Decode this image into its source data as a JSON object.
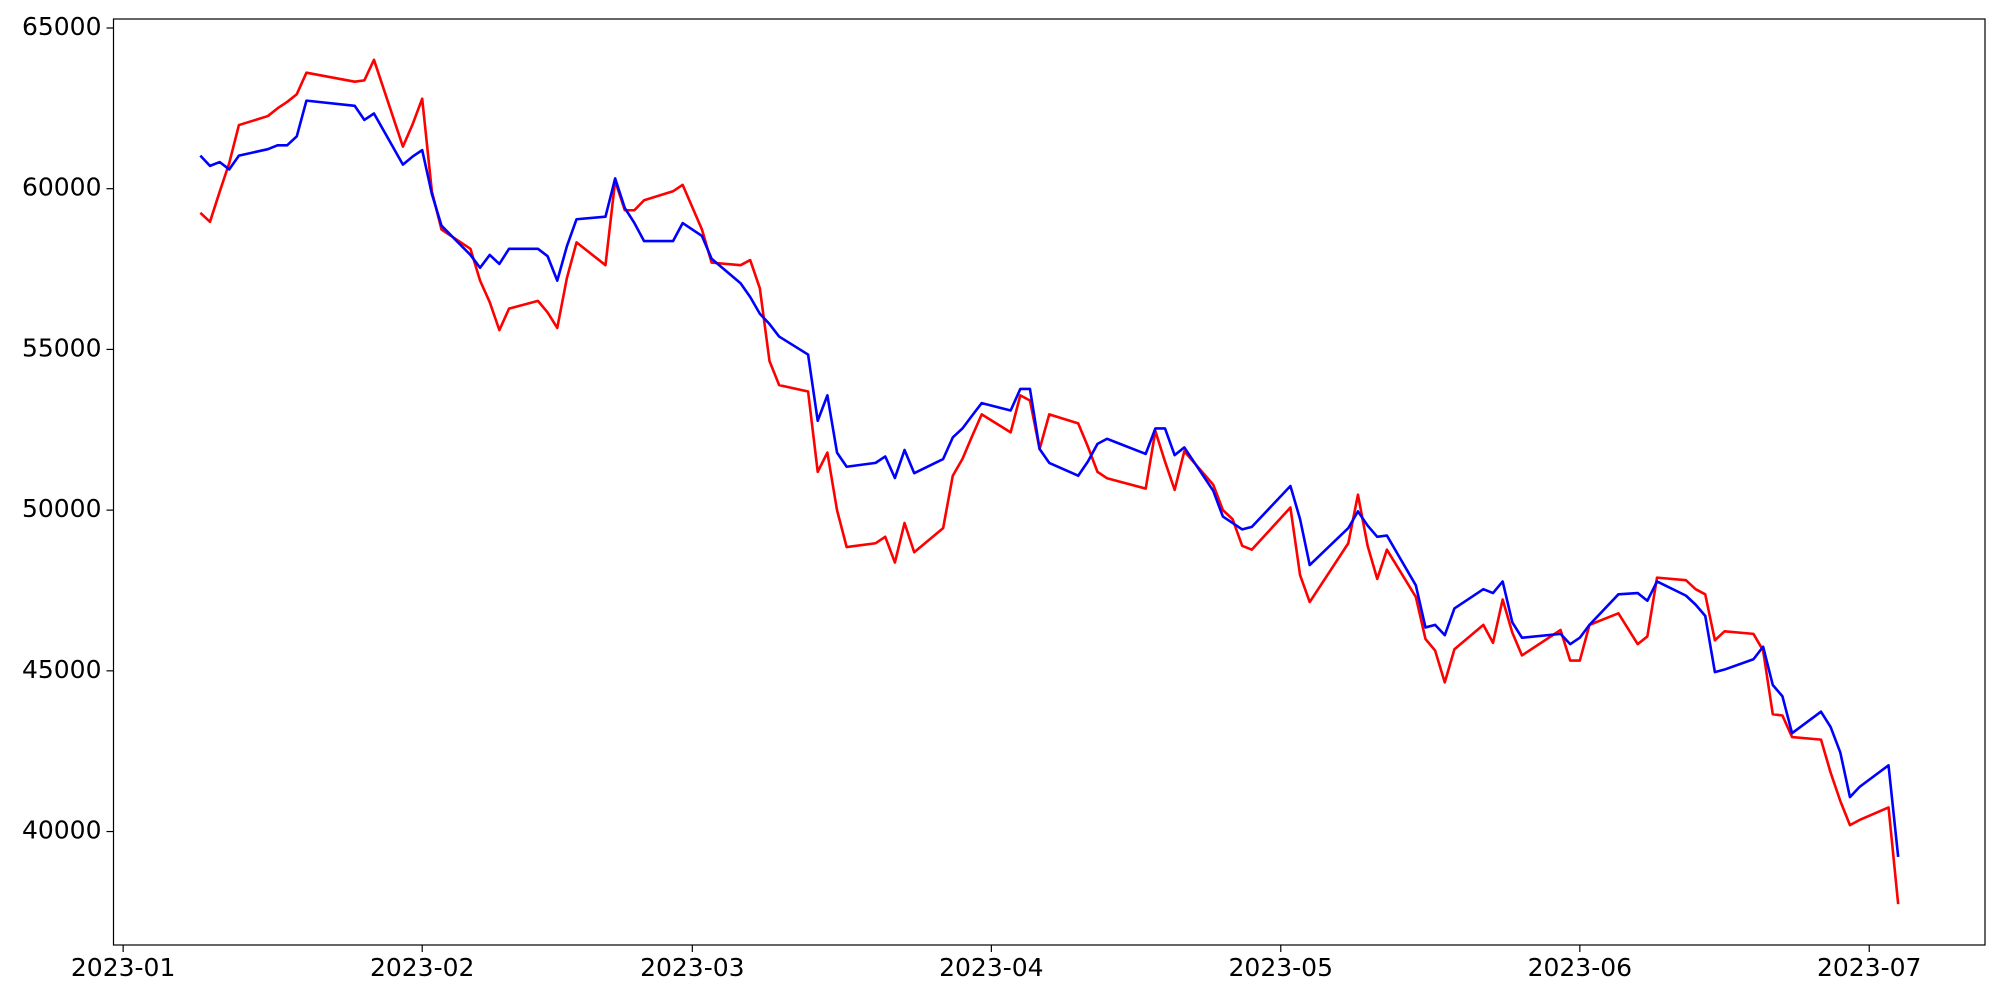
{
  "chart_data": {
    "type": "line",
    "x": [
      "2023-01-09",
      "2023-01-10",
      "2023-01-11",
      "2023-01-12",
      "2023-01-13",
      "2023-01-16",
      "2023-01-17",
      "2023-01-18",
      "2023-01-19",
      "2023-01-20",
      "2023-01-25",
      "2023-01-26",
      "2023-01-27",
      "2023-01-30",
      "2023-01-31",
      "2023-02-01",
      "2023-02-02",
      "2023-02-03",
      "2023-02-06",
      "2023-02-07",
      "2023-02-08",
      "2023-02-09",
      "2023-02-10",
      "2023-02-13",
      "2023-02-14",
      "2023-02-15",
      "2023-02-16",
      "2023-02-17",
      "2023-02-20",
      "2023-02-21",
      "2023-02-22",
      "2023-02-23",
      "2023-02-24",
      "2023-02-27",
      "2023-02-28",
      "2023-03-02",
      "2023-03-03",
      "2023-03-06",
      "2023-03-07",
      "2023-03-08",
      "2023-03-09",
      "2023-03-10",
      "2023-03-13",
      "2023-03-14",
      "2023-03-15",
      "2023-03-16",
      "2023-03-17",
      "2023-03-20",
      "2023-03-21",
      "2023-03-22",
      "2023-03-23",
      "2023-03-24",
      "2023-03-27",
      "2023-03-28",
      "2023-03-29",
      "2023-03-30",
      "2023-03-31",
      "2023-04-03",
      "2023-04-04",
      "2023-04-05",
      "2023-04-06",
      "2023-04-07",
      "2023-04-10",
      "2023-04-11",
      "2023-04-12",
      "2023-04-13",
      "2023-04-14",
      "2023-04-17",
      "2023-04-18",
      "2023-04-19",
      "2023-04-20",
      "2023-04-21",
      "2023-04-24",
      "2023-04-25",
      "2023-04-26",
      "2023-04-27",
      "2023-04-28",
      "2023-05-02",
      "2023-05-03",
      "2023-05-04",
      "2023-05-08",
      "2023-05-09",
      "2023-05-10",
      "2023-05-11",
      "2023-05-12",
      "2023-05-15",
      "2023-05-16",
      "2023-05-17",
      "2023-05-18",
      "2023-05-19",
      "2023-05-22",
      "2023-05-23",
      "2023-05-24",
      "2023-05-25",
      "2023-05-26",
      "2023-05-30",
      "2023-05-31",
      "2023-06-01",
      "2023-06-02",
      "2023-06-05",
      "2023-06-07",
      "2023-06-08",
      "2023-06-09",
      "2023-06-12",
      "2023-06-13",
      "2023-06-14",
      "2023-06-15",
      "2023-06-16",
      "2023-06-19",
      "2023-06-20",
      "2023-06-21",
      "2023-06-22",
      "2023-06-23",
      "2023-06-26",
      "2023-06-27",
      "2023-06-28",
      "2023-06-29",
      "2023-06-30",
      "2023-07-03",
      "2023-07-04"
    ],
    "series": [
      {
        "color": "#ff0000",
        "values": [
          59250,
          58970,
          59900,
          60800,
          61980,
          62260,
          62500,
          62700,
          62940,
          63610,
          63330,
          63370,
          64010,
          61310,
          62000,
          62800,
          59920,
          58730,
          58130,
          57140,
          56470,
          55600,
          56270,
          56510,
          56150,
          55670,
          57220,
          58330,
          57620,
          60240,
          59330,
          59330,
          59640,
          59920,
          60120,
          58730,
          57700,
          57620,
          57780,
          56900,
          54640,
          53890,
          53690,
          51190,
          51790,
          50000,
          48850,
          48970,
          49170,
          48370,
          49600,
          48690,
          49440,
          51070,
          51590,
          52300,
          52980,
          52420,
          53570,
          53410,
          51900,
          52980,
          52700,
          51980,
          51190,
          50990,
          50910,
          50670,
          52460,
          51510,
          50630,
          51830,
          50790,
          50000,
          49720,
          48890,
          48770,
          50080,
          47980,
          47140,
          48970,
          50480,
          48890,
          47860,
          48770,
          47300,
          45990,
          45630,
          44640,
          45670,
          46430,
          45870,
          47220,
          46190,
          45480,
          46270,
          45320,
          45320,
          46430,
          46790,
          45830,
          46070,
          47900,
          47820,
          47540,
          47380,
          45950,
          46230,
          46150,
          45630,
          43650,
          43610,
          42940,
          42860,
          41830,
          40950,
          40200,
          40360,
          40750,
          37740
        ]
      },
      {
        "color": "#0000ff",
        "values": [
          61030,
          60710,
          60830,
          60600,
          61030,
          61230,
          61350,
          61350,
          61630,
          62740,
          62580,
          62140,
          62340,
          60750,
          61000,
          61200,
          59840,
          58850,
          57940,
          57540,
          57940,
          57660,
          58130,
          58130,
          57900,
          57140,
          58210,
          59050,
          59130,
          60320,
          59400,
          58930,
          58370,
          58370,
          58930,
          58530,
          57820,
          57060,
          56630,
          56110,
          55790,
          55400,
          54840,
          52780,
          53570,
          51790,
          51350,
          51470,
          51670,
          51000,
          51870,
          51150,
          51590,
          52260,
          52540,
          52940,
          53330,
          53100,
          53770,
          53770,
          51900,
          51470,
          51070,
          51510,
          52060,
          52220,
          52100,
          51750,
          52540,
          52540,
          51710,
          51950,
          50600,
          49800,
          49600,
          49400,
          49480,
          50750,
          49720,
          48290,
          49440,
          49960,
          49520,
          49170,
          49210,
          47660,
          46350,
          46430,
          46110,
          46940,
          47540,
          47420,
          47780,
          46510,
          46030,
          46150,
          45830,
          46030,
          46430,
          47380,
          47420,
          47180,
          47780,
          47340,
          47060,
          46710,
          44960,
          45040,
          45360,
          45750,
          44560,
          44210,
          43060,
          43730,
          43250,
          42460,
          41070,
          41390,
          42060,
          39210
        ]
      }
    ],
    "xlim": [
      "2022-12-31",
      "2023-07-13"
    ],
    "xticks": [
      {
        "value": "2023-01-01",
        "label": "2023-01"
      },
      {
        "value": "2023-02-01",
        "label": "2023-02"
      },
      {
        "value": "2023-03-01",
        "label": "2023-03"
      },
      {
        "value": "2023-04-01",
        "label": "2023-04"
      },
      {
        "value": "2023-05-01",
        "label": "2023-05"
      },
      {
        "value": "2023-06-01",
        "label": "2023-06"
      },
      {
        "value": "2023-07-01",
        "label": "2023-07"
      }
    ],
    "ylim": [
      36470,
      65280
    ],
    "yticks": [
      40000,
      45000,
      50000,
      55000,
      60000,
      65000
    ],
    "grid": false
  }
}
